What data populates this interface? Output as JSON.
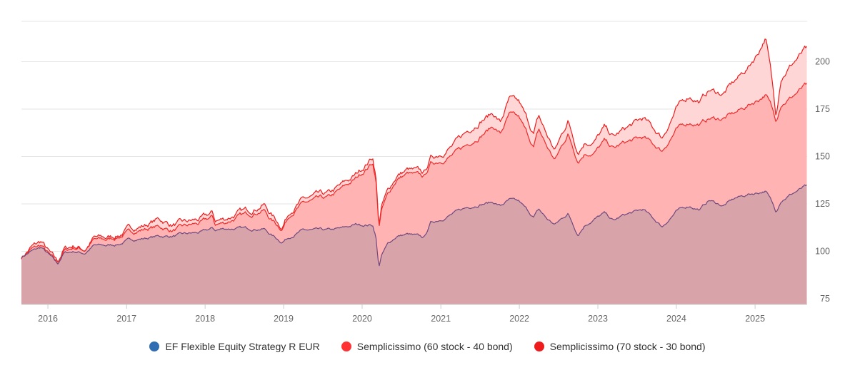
{
  "chart_data": {
    "type": "area",
    "x_ticks": [
      "2016",
      "2017",
      "2018",
      "2019",
      "2020",
      "2021",
      "2022",
      "2023",
      "2024",
      "2025"
    ],
    "y_ticks": [
      75,
      100,
      125,
      150,
      175,
      200
    ],
    "ylim": [
      72,
      222
    ],
    "xlim": [
      "2015-08-31",
      "2025-08-31"
    ],
    "grid": "horizontal",
    "legend_position": "bottom",
    "series": [
      {
        "name": "EF Flexible Equity Strategy R EUR",
        "color": "#2f6db3",
        "line_color": "#6e4a7e",
        "fill_color": "#d9a3aa",
        "points": [
          [
            "2015-09-01",
            97
          ],
          [
            "2015-10-15",
            100
          ],
          [
            "2015-12-01",
            102
          ],
          [
            "2016-01-15",
            97
          ],
          [
            "2016-02-15",
            93
          ],
          [
            "2016-03-15",
            99
          ],
          [
            "2016-05-01",
            100
          ],
          [
            "2016-06-20",
            99
          ],
          [
            "2016-08-01",
            103
          ],
          [
            "2016-10-01",
            103
          ],
          [
            "2016-12-01",
            104
          ],
          [
            "2017-01-15",
            106
          ],
          [
            "2017-04-01",
            107
          ],
          [
            "2017-06-01",
            108
          ],
          [
            "2017-08-01",
            108
          ],
          [
            "2017-10-01",
            109
          ],
          [
            "2017-12-15",
            110
          ],
          [
            "2018-02-05",
            112
          ],
          [
            "2018-02-15",
            111
          ],
          [
            "2018-04-01",
            112
          ],
          [
            "2018-06-01",
            112
          ],
          [
            "2018-08-01",
            112
          ],
          [
            "2018-10-01",
            112
          ],
          [
            "2018-11-01",
            109
          ],
          [
            "2018-12-24",
            105
          ],
          [
            "2019-02-01",
            108
          ],
          [
            "2019-04-01",
            111
          ],
          [
            "2019-06-01",
            111
          ],
          [
            "2019-08-01",
            111
          ],
          [
            "2019-10-01",
            112
          ],
          [
            "2019-12-01",
            114
          ],
          [
            "2020-02-19",
            114
          ],
          [
            "2020-03-05",
            108
          ],
          [
            "2020-03-12",
            99
          ],
          [
            "2020-03-19",
            92
          ],
          [
            "2020-04-01",
            98
          ],
          [
            "2020-05-01",
            104
          ],
          [
            "2020-06-10",
            108
          ],
          [
            "2020-08-01",
            109
          ],
          [
            "2020-10-15",
            107
          ],
          [
            "2020-11-15",
            115
          ],
          [
            "2021-01-01",
            117
          ],
          [
            "2021-03-01",
            120
          ],
          [
            "2021-05-01",
            123
          ],
          [
            "2021-07-01",
            125
          ],
          [
            "2021-09-01",
            126
          ],
          [
            "2021-10-05",
            124
          ],
          [
            "2021-11-15",
            127
          ],
          [
            "2021-12-31",
            126
          ],
          [
            "2022-03-08",
            118
          ],
          [
            "2022-04-01",
            122
          ],
          [
            "2022-05-10",
            117
          ],
          [
            "2022-06-15",
            114
          ],
          [
            "2022-08-15",
            120
          ],
          [
            "2022-09-30",
            109
          ],
          [
            "2022-11-01",
            114
          ],
          [
            "2022-12-15",
            117
          ],
          [
            "2023-02-01",
            120
          ],
          [
            "2023-03-15",
            116
          ],
          [
            "2023-05-01",
            119
          ],
          [
            "2023-07-31",
            122
          ],
          [
            "2023-10-27",
            113
          ],
          [
            "2023-12-31",
            121
          ],
          [
            "2024-03-01",
            124
          ],
          [
            "2024-04-19",
            122
          ],
          [
            "2024-06-01",
            127
          ],
          [
            "2024-08-05",
            124
          ],
          [
            "2024-10-01",
            128
          ],
          [
            "2024-12-01",
            130
          ],
          [
            "2025-01-15",
            131
          ],
          [
            "2025-02-19",
            132
          ],
          [
            "2025-03-15",
            127
          ],
          [
            "2025-04-08",
            121
          ],
          [
            "2025-05-01",
            127
          ],
          [
            "2025-06-15",
            130
          ],
          [
            "2025-08-20",
            134
          ]
        ]
      },
      {
        "name": "Semplicissimo (60 stock - 40 bond)",
        "color": "#ff3333",
        "line_color": "#ee2b2b",
        "fill_color": "#ffb3b3",
        "points": [
          [
            "2015-09-01",
            97
          ],
          [
            "2015-10-15",
            101
          ],
          [
            "2015-12-01",
            103
          ],
          [
            "2016-01-15",
            97
          ],
          [
            "2016-02-15",
            93
          ],
          [
            "2016-03-15",
            100
          ],
          [
            "2016-05-01",
            102
          ],
          [
            "2016-06-20",
            101
          ],
          [
            "2016-08-01",
            106
          ],
          [
            "2016-10-01",
            106
          ],
          [
            "2016-12-01",
            108
          ],
          [
            "2017-01-15",
            110
          ],
          [
            "2017-04-01",
            112
          ],
          [
            "2017-06-01",
            113
          ],
          [
            "2017-08-01",
            111
          ],
          [
            "2017-10-01",
            113
          ],
          [
            "2017-12-15",
            115
          ],
          [
            "2018-02-05",
            118
          ],
          [
            "2018-02-15",
            114
          ],
          [
            "2018-04-01",
            115
          ],
          [
            "2018-06-01",
            118
          ],
          [
            "2018-08-01",
            120
          ],
          [
            "2018-10-01",
            122
          ],
          [
            "2018-11-01",
            117
          ],
          [
            "2018-12-24",
            112
          ],
          [
            "2019-02-01",
            120
          ],
          [
            "2019-04-01",
            125
          ],
          [
            "2019-06-01",
            127
          ],
          [
            "2019-08-01",
            128
          ],
          [
            "2019-10-01",
            133
          ],
          [
            "2019-12-01",
            138
          ],
          [
            "2020-02-19",
            147
          ],
          [
            "2020-03-05",
            138
          ],
          [
            "2020-03-12",
            125
          ],
          [
            "2020-03-19",
            113
          ],
          [
            "2020-04-01",
            122
          ],
          [
            "2020-05-01",
            130
          ],
          [
            "2020-06-10",
            138
          ],
          [
            "2020-08-01",
            141
          ],
          [
            "2020-10-15",
            139
          ],
          [
            "2020-11-15",
            146
          ],
          [
            "2021-01-01",
            148
          ],
          [
            "2021-03-01",
            151
          ],
          [
            "2021-05-01",
            156
          ],
          [
            "2021-07-01",
            161
          ],
          [
            "2021-09-01",
            166
          ],
          [
            "2021-10-05",
            162
          ],
          [
            "2021-11-15",
            172
          ],
          [
            "2021-12-31",
            170
          ],
          [
            "2022-03-08",
            155
          ],
          [
            "2022-04-01",
            164
          ],
          [
            "2022-05-10",
            155
          ],
          [
            "2022-06-15",
            148
          ],
          [
            "2022-08-15",
            162
          ],
          [
            "2022-09-30",
            148
          ],
          [
            "2022-11-01",
            152
          ],
          [
            "2022-12-15",
            152
          ],
          [
            "2023-02-01",
            158
          ],
          [
            "2023-03-15",
            154
          ],
          [
            "2023-05-01",
            157
          ],
          [
            "2023-07-31",
            160
          ],
          [
            "2023-10-27",
            153
          ],
          [
            "2023-12-31",
            164
          ],
          [
            "2024-03-01",
            168
          ],
          [
            "2024-04-19",
            167
          ],
          [
            "2024-06-01",
            170
          ],
          [
            "2024-08-05",
            170
          ],
          [
            "2024-10-01",
            173
          ],
          [
            "2024-12-01",
            177
          ],
          [
            "2025-01-15",
            180
          ],
          [
            "2025-02-19",
            183
          ],
          [
            "2025-03-15",
            177
          ],
          [
            "2025-04-08",
            169
          ],
          [
            "2025-05-01",
            178
          ],
          [
            "2025-06-15",
            181
          ],
          [
            "2025-08-20",
            187
          ]
        ]
      },
      {
        "name": "Semplicissimo (70 stock - 30 bond)",
        "color": "#ee1c1c",
        "line_color": "#ee1c1c",
        "fill_color": "#ffd6d6",
        "points": [
          [
            "2015-09-01",
            97
          ],
          [
            "2015-10-15",
            102
          ],
          [
            "2015-12-01",
            105
          ],
          [
            "2016-01-15",
            98
          ],
          [
            "2016-02-15",
            94
          ],
          [
            "2016-03-15",
            101
          ],
          [
            "2016-05-01",
            103
          ],
          [
            "2016-06-20",
            101
          ],
          [
            "2016-08-01",
            107
          ],
          [
            "2016-10-01",
            107
          ],
          [
            "2016-12-01",
            109
          ],
          [
            "2017-01-15",
            112
          ],
          [
            "2017-04-01",
            114
          ],
          [
            "2017-06-01",
            117
          ],
          [
            "2017-08-01",
            114
          ],
          [
            "2017-10-01",
            115
          ],
          [
            "2017-12-15",
            117
          ],
          [
            "2018-02-05",
            120
          ],
          [
            "2018-02-15",
            116
          ],
          [
            "2018-04-01",
            117
          ],
          [
            "2018-06-01",
            120
          ],
          [
            "2018-08-01",
            122
          ],
          [
            "2018-10-01",
            125
          ],
          [
            "2018-11-01",
            120
          ],
          [
            "2018-12-24",
            113
          ],
          [
            "2019-02-01",
            122
          ],
          [
            "2019-04-01",
            127
          ],
          [
            "2019-06-01",
            129
          ],
          [
            "2019-08-01",
            130
          ],
          [
            "2019-10-01",
            135
          ],
          [
            "2019-12-01",
            140
          ],
          [
            "2020-02-19",
            150
          ],
          [
            "2020-03-05",
            140
          ],
          [
            "2020-03-12",
            127
          ],
          [
            "2020-03-19",
            114
          ],
          [
            "2020-04-01",
            124
          ],
          [
            "2020-05-01",
            132
          ],
          [
            "2020-06-10",
            140
          ],
          [
            "2020-08-01",
            143
          ],
          [
            "2020-10-15",
            141
          ],
          [
            "2020-11-15",
            149
          ],
          [
            "2021-01-01",
            152
          ],
          [
            "2021-03-01",
            156
          ],
          [
            "2021-05-01",
            163
          ],
          [
            "2021-07-01",
            169
          ],
          [
            "2021-09-01",
            173
          ],
          [
            "2021-10-05",
            168
          ],
          [
            "2021-11-15",
            180
          ],
          [
            "2021-12-31",
            178
          ],
          [
            "2022-03-08",
            162
          ],
          [
            "2022-04-01",
            171
          ],
          [
            "2022-05-10",
            161
          ],
          [
            "2022-06-15",
            153
          ],
          [
            "2022-08-15",
            169
          ],
          [
            "2022-09-30",
            153
          ],
          [
            "2022-11-01",
            158
          ],
          [
            "2022-12-15",
            158
          ],
          [
            "2023-02-01",
            165
          ],
          [
            "2023-03-15",
            160
          ],
          [
            "2023-05-01",
            164
          ],
          [
            "2023-07-31",
            170
          ],
          [
            "2023-10-27",
            160
          ],
          [
            "2023-12-31",
            175
          ],
          [
            "2024-03-01",
            182
          ],
          [
            "2024-04-19",
            179
          ],
          [
            "2024-06-01",
            185
          ],
          [
            "2024-08-05",
            183
          ],
          [
            "2024-10-01",
            190
          ],
          [
            "2024-12-01",
            197
          ],
          [
            "2025-01-15",
            205
          ],
          [
            "2025-02-19",
            213
          ],
          [
            "2025-03-15",
            195
          ],
          [
            "2025-04-08",
            172
          ],
          [
            "2025-05-01",
            192
          ],
          [
            "2025-06-15",
            198
          ],
          [
            "2025-08-20",
            206
          ]
        ]
      }
    ]
  }
}
